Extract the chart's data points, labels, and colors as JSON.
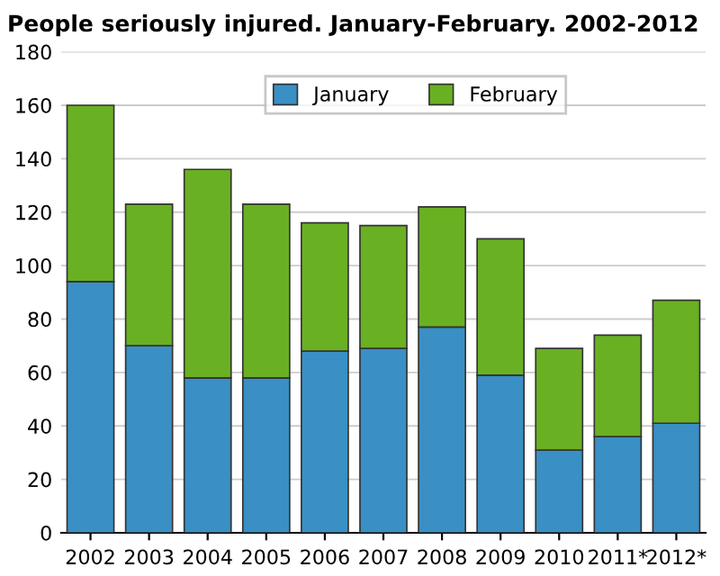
{
  "chart_data": {
    "type": "bar",
    "title": "People seriously injured. January-February. 2002-2012",
    "categories": [
      "2002",
      "2003",
      "2004",
      "2005",
      "2006",
      "2007",
      "2008",
      "2009",
      "2010",
      "2011*",
      "2012*"
    ],
    "stacked": true,
    "series": [
      {
        "name": "January",
        "color": "#3a8fc4",
        "values": [
          94,
          70,
          58,
          58,
          68,
          69,
          77,
          59,
          31,
          36,
          41
        ]
      },
      {
        "name": "February",
        "color": "#6ab023",
        "values": [
          66,
          53,
          78,
          65,
          48,
          46,
          45,
          51,
          38,
          38,
          46
        ]
      }
    ],
    "ylim": [
      0,
      180
    ],
    "yticks": [
      0,
      20,
      40,
      60,
      80,
      100,
      120,
      140,
      160,
      180
    ],
    "grid": "y",
    "legend": "top"
  }
}
